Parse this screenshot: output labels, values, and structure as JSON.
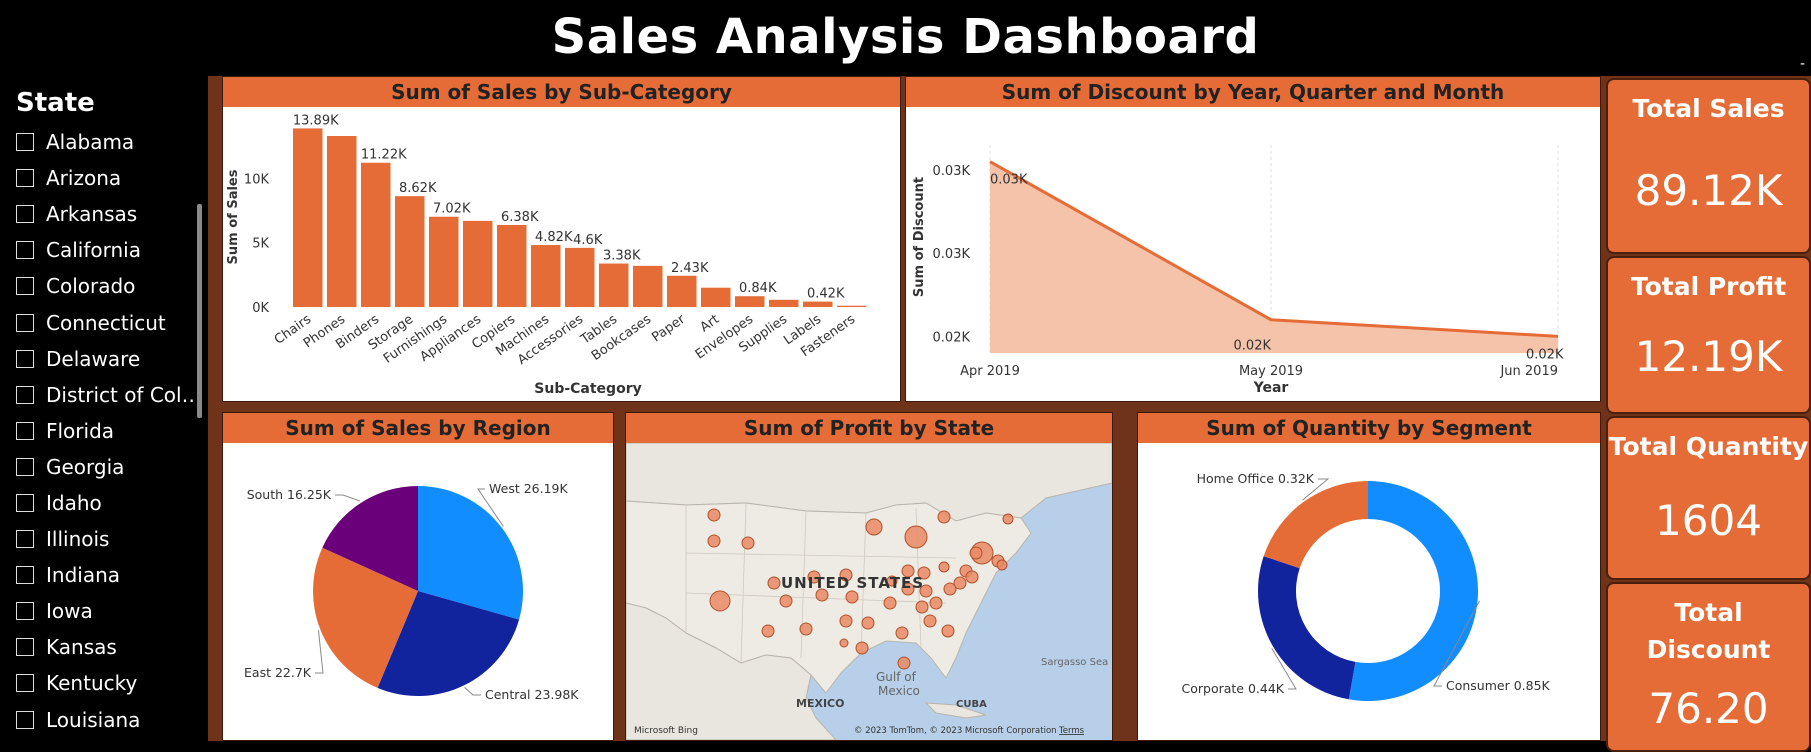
{
  "header": {
    "title": "Sales Analysis Dashboard",
    "corner_mark": "-"
  },
  "slicer": {
    "title": "State",
    "items": [
      "Alabama",
      "Arizona",
      "Arkansas",
      "California",
      "Colorado",
      "Connecticut",
      "Delaware",
      "District of Colu...",
      "Florida",
      "Georgia",
      "Idaho",
      "Illinois",
      "Indiana",
      "Iowa",
      "Kansas",
      "Kentucky",
      "Louisiana"
    ]
  },
  "colors": {
    "accent": "#e66c37",
    "background": "#000000",
    "canvas": "#6e3318",
    "blue": "#118dff",
    "navy": "#12239e",
    "purple": "#6b007b"
  },
  "panels": {
    "sales_by_subcat": {
      "title": "Sum of Sales by Sub-Category"
    },
    "discount_by_date": {
      "title": "Sum of Discount by Year, Quarter and Month"
    },
    "sales_by_region": {
      "title": "Sum of Sales by Region"
    },
    "profit_by_state": {
      "title": "Sum of Profit by State",
      "country_label": "UNITED STATES",
      "gulf_label": "Gulf of Mexico",
      "mexico_label": "MEXICO",
      "cuba_label": "CUBA",
      "sea_label": "Sargasso Sea",
      "attribution": "© 2023 TomTom, © 2023 Microsoft Corporation",
      "terms": "Terms",
      "bing": "Microsoft Bing"
    },
    "quantity_by_segment": {
      "title": "Sum of Quantity by Segment"
    }
  },
  "kpis": [
    {
      "label": "Total Sales",
      "value": "89.12K"
    },
    {
      "label": "Total Profit",
      "value": "12.19K"
    },
    {
      "label": "Total Quantity",
      "value": "1604"
    },
    {
      "label": "Total Discount",
      "value": "76.20"
    }
  ],
  "chart_data": [
    {
      "type": "bar",
      "title": "Sum of Sales by Sub-Category",
      "xlabel": "Sub-Category",
      "ylabel": "Sum of Sales",
      "categories": [
        "Chairs",
        "Phones",
        "Binders",
        "Storage",
        "Furnishings",
        "Appliances",
        "Copiers",
        "Machines",
        "Accessories",
        "Tables",
        "Bookcases",
        "Paper",
        "Art",
        "Envelopes",
        "Supplies",
        "Labels",
        "Fasteners"
      ],
      "values": [
        13890,
        13300,
        11220,
        8620,
        7020,
        6700,
        6380,
        4820,
        4600,
        3380,
        3200,
        2430,
        1500,
        840,
        560,
        420,
        100
      ],
      "data_labels": [
        "13.89K",
        "",
        "11.22K",
        "8.62K",
        "7.02K",
        "",
        "6.38K",
        "4.82K",
        "4.6K",
        "3.38K",
        "",
        "2.43K",
        "",
        "0.84K",
        "",
        "0.42K",
        ""
      ],
      "yticks": [
        "0K",
        "5K",
        "10K"
      ],
      "ylim": [
        0,
        14000
      ]
    },
    {
      "type": "area",
      "title": "Sum of Discount by Year, Quarter and Month",
      "xlabel": "Year",
      "ylabel": "Sum of Discount",
      "x": [
        "Apr 2019",
        "May 2019",
        "Jun 2019"
      ],
      "values": [
        0.031,
        0.0215,
        0.0205
      ],
      "data_labels": [
        "0.03K",
        "0.02K",
        "0.02K"
      ],
      "yticks": [
        "0.02K",
        "0.03K",
        "0.03K"
      ],
      "ylim": [
        0.0195,
        0.032
      ]
    },
    {
      "type": "pie",
      "title": "Sum of Sales by Region",
      "labels": [
        "West",
        "Central",
        "East",
        "South"
      ],
      "values": [
        26.19,
        23.98,
        22.7,
        16.25
      ],
      "data_labels": [
        "West 26.19K",
        "Central 23.98K",
        "East 22.7K",
        "South 16.25K"
      ],
      "colors": [
        "#118dff",
        "#12239e",
        "#e66c37",
        "#6b007b"
      ]
    },
    {
      "type": "pie",
      "title": "Sum of Quantity by Segment",
      "donut": true,
      "labels": [
        "Consumer",
        "Corporate",
        "Home Office"
      ],
      "values": [
        0.85,
        0.44,
        0.32
      ],
      "data_labels": [
        "Consumer 0.85K",
        "Corporate 0.44K",
        "Home Office 0.32K"
      ],
      "colors": [
        "#118dff",
        "#12239e",
        "#e66c37"
      ]
    }
  ]
}
